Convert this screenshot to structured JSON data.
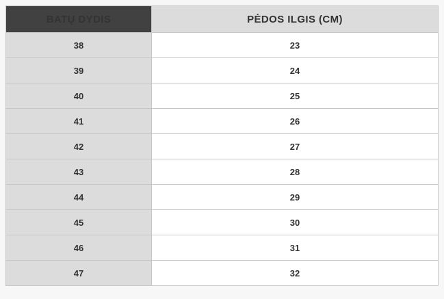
{
  "colors": {
    "page_background": "#f7f7f7",
    "header_dark_bg": "#414141",
    "header_dark_text": "#ffffff",
    "header_light_bg": "#dcdcdc",
    "row_gray_bg": "#dcdcdc",
    "row_white_bg": "#ffffff",
    "border": "#c6c6c6",
    "body_text": "#333333"
  },
  "chart_data": {
    "type": "table",
    "columns": [
      "BATŲ DYDIS",
      "PĖDOS ILGIS (CM)"
    ],
    "rows": [
      [
        "38",
        "23"
      ],
      [
        "39",
        "24"
      ],
      [
        "40",
        "25"
      ],
      [
        "41",
        "26"
      ],
      [
        "42",
        "27"
      ],
      [
        "43",
        "28"
      ],
      [
        "44",
        "29"
      ],
      [
        "45",
        "30"
      ],
      [
        "46",
        "31"
      ],
      [
        "47",
        "32"
      ]
    ]
  }
}
